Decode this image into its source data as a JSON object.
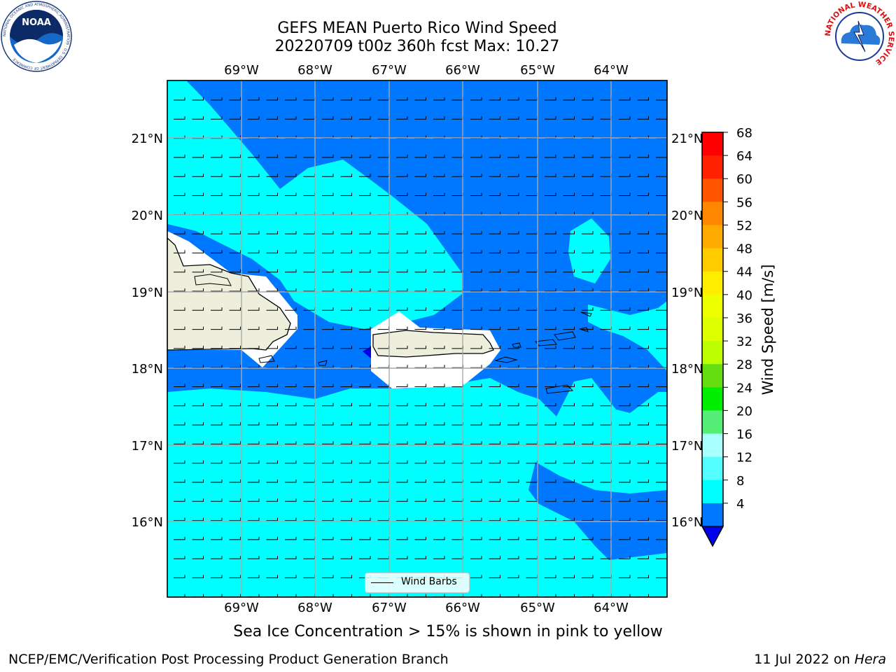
{
  "title_line1": "GEFS MEAN Puerto Rico Wind Speed",
  "title_line2": "20220709 t00z 360h fcst   Max: 10.27",
  "lon_labels": [
    "69°W",
    "68°W",
    "67°W",
    "66°W",
    "65°W",
    "64°W"
  ],
  "lat_labels": [
    "21°N",
    "20°N",
    "19°N",
    "18°N",
    "17°N",
    "16°N"
  ],
  "legend_label": "Wind Barbs",
  "colorbar": {
    "label": "Wind Speed [m/s]",
    "ticks": [
      "68",
      "64",
      "60",
      "56",
      "52",
      "48",
      "44",
      "40",
      "36",
      "32",
      "28",
      "24",
      "20",
      "16",
      "12",
      "8",
      "4"
    ],
    "colors": [
      "#ff0000",
      "#ff2200",
      "#ff5500",
      "#ff8800",
      "#ffaa00",
      "#ffcc00",
      "#ffee00",
      "#eeff00",
      "#ddff00",
      "#bbff00",
      "#66dd11",
      "#00ee00",
      "#55ee77",
      "#aaffff",
      "#55ffff",
      "#00ffff",
      "#0077ff"
    ],
    "under_color": "#0000ee"
  },
  "colors": {
    "water_low": "#0077ff",
    "water_mid": "#00ffff",
    "land": "#eeeedd",
    "mask": "#ffffff"
  },
  "sea_ice_note": "Sea Ice Concentration > 15% is shown in pink to yellow",
  "footer_left": "NCEP/EMC/Verification Post Processing Product Generation Branch",
  "footer_date": "11 Jul 2022 on ",
  "footer_machine": "Hera",
  "logos": {
    "noaa_text": "NOAA",
    "noaa_ring": "NATIONAL OCEANIC AND ATMOSPHERIC ADMINISTRATION · U.S. DEPARTMENT OF COMMERCE",
    "nws_ring": "NATIONAL WEATHER SERVICE"
  }
}
